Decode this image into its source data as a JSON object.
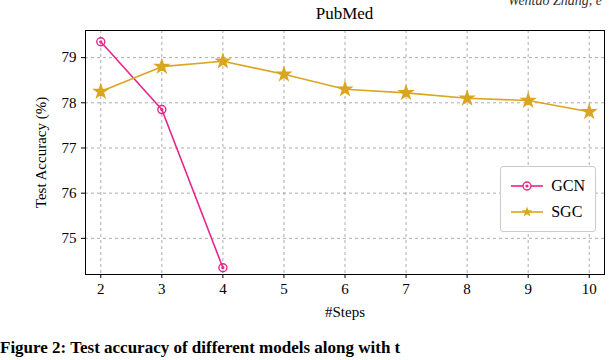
{
  "chart_data": {
    "type": "line",
    "title": "PubMed",
    "header": "Wentao Zhang, e",
    "caption": "Figure 2: Test accuracy of different models along with t",
    "x_label": "#Steps",
    "y_label": "Test Accuracy (%)",
    "x": [
      2,
      3,
      4,
      5,
      6,
      7,
      8,
      9,
      10
    ],
    "series": [
      {
        "name": "GCN",
        "color": "#e8258a",
        "marker": "circle",
        "line_style": "solid",
        "values": [
          79.35,
          77.85,
          74.35,
          null,
          null,
          null,
          null,
          null,
          null
        ]
      },
      {
        "name": "SGC",
        "color": "#daa520",
        "marker": "star",
        "line_style": "solid",
        "values": [
          78.25,
          78.8,
          78.92,
          78.63,
          78.3,
          78.22,
          78.1,
          78.05,
          77.8
        ]
      }
    ],
    "xlim": [
      1.75,
      10.25
    ],
    "ylim": [
      74.2,
      79.6
    ],
    "xticks": [
      2,
      3,
      4,
      5,
      6,
      7,
      8,
      9,
      10
    ],
    "yticks": [
      75,
      76,
      77,
      78,
      79
    ],
    "grid": true,
    "legend": "right"
  }
}
